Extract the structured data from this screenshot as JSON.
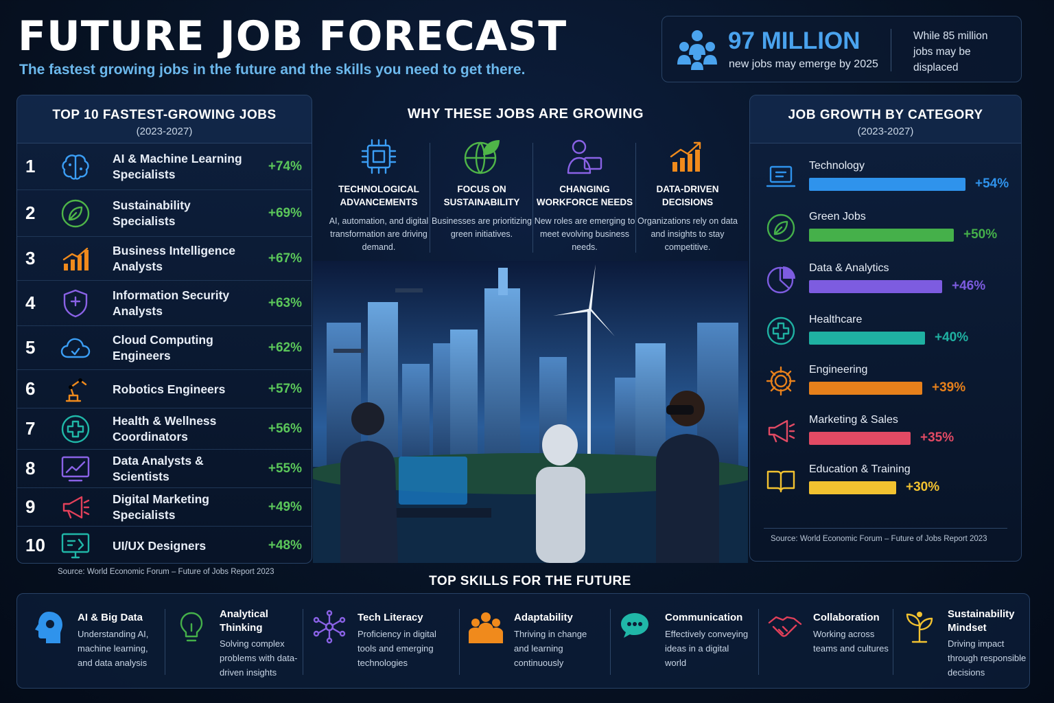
{
  "header": {
    "title": "FUTURE JOB FORECAST",
    "subtitle": "The fastest growing jobs in the future and the skills you need to get there."
  },
  "stat": {
    "icon": "people-icon",
    "big": "97 MILLION",
    "small": "new jobs may emerge by 2025",
    "right": "While 85 million jobs may be displaced"
  },
  "jobs": {
    "title": "TOP 10 FASTEST-GROWING JOBS",
    "years": "(2023-2027)",
    "source": "Source: World Economic Forum – Future of Jobs Report 2023",
    "items": [
      {
        "rank": "1",
        "name": "AI & Machine Learning Specialists",
        "pct": "+74%",
        "icon": "brain-circuit-icon",
        "color": "#3b9ef5"
      },
      {
        "rank": "2",
        "name": "Sustainability Specialists",
        "pct": "+69%",
        "icon": "leaf-icon",
        "color": "#4fb548"
      },
      {
        "rank": "3",
        "name": "Business Intelligence Analysts",
        "pct": "+67%",
        "icon": "bar-chart-icon",
        "color": "#f08a1c"
      },
      {
        "rank": "4",
        "name": "Information Security Analysts",
        "pct": "+63%",
        "icon": "shield-icon",
        "color": "#8a62e6"
      },
      {
        "rank": "5",
        "name": "Cloud Computing Engineers",
        "pct": "+62%",
        "icon": "cloud-icon",
        "color": "#3b9ef5"
      },
      {
        "rank": "6",
        "name": "Robotics Engineers",
        "pct": "+57%",
        "icon": "robot-arm-icon",
        "color": "#f08a1c"
      },
      {
        "rank": "7",
        "name": "Health & Wellness Coordinators",
        "pct": "+56%",
        "icon": "health-cross-icon",
        "color": "#20b7a8"
      },
      {
        "rank": "8",
        "name": "Data Analysts & Scientists",
        "pct": "+55%",
        "icon": "analytics-board-icon",
        "color": "#8a62e6"
      },
      {
        "rank": "9",
        "name": "Digital Marketing Specialists",
        "pct": "+49%",
        "icon": "megaphone-icon",
        "color": "#e2405a"
      },
      {
        "rank": "10",
        "name": "UI/UX Designers",
        "pct": "+48%",
        "icon": "design-monitor-icon",
        "color": "#20b7a8"
      }
    ]
  },
  "reasons": {
    "title": "WHY THESE JOBS ARE GROWING",
    "items": [
      {
        "title": "TECHNOLOGICAL ADVANCEMENTS",
        "desc": "AI, automation, and digital transformation are driving demand.",
        "icon": "chip-icon",
        "color": "#3b9ef5"
      },
      {
        "title": "FOCUS ON SUSTAINABILITY",
        "desc": "Businesses are prioritizing green initiatives.",
        "icon": "globe-leaf-icon",
        "color": "#4fb548"
      },
      {
        "title": "CHANGING WORKFORCE NEEDS",
        "desc": "New roles are emerging to meet evolving business needs.",
        "icon": "person-computer-icon",
        "color": "#8a62e6"
      },
      {
        "title": "DATA-DRIVEN DECISIONS",
        "desc": "Organizations rely on data and insights to stay competitive.",
        "icon": "growth-chart-icon",
        "color": "#f08a1c"
      }
    ]
  },
  "growth": {
    "title": "JOB GROWTH BY CATEGORY",
    "years": "(2023-2027)",
    "source": "Source: World Economic Forum – Future of Jobs Report 2023",
    "items": [
      {
        "name": "Technology",
        "pct": "+54%",
        "value": 54,
        "icon": "laptop-icon",
        "color": "#2f93ec"
      },
      {
        "name": "Green Jobs",
        "pct": "+50%",
        "value": 50,
        "icon": "leaf-icon",
        "color": "#45b04a"
      },
      {
        "name": "Data & Analytics",
        "pct": "+46%",
        "value": 46,
        "icon": "pie-chart-icon",
        "color": "#7d5ce0"
      },
      {
        "name": "Healthcare",
        "pct": "+40%",
        "value": 40,
        "icon": "health-cross-icon",
        "color": "#1fb1a2"
      },
      {
        "name": "Engineering",
        "pct": "+39%",
        "value": 39,
        "icon": "gear-icon",
        "color": "#e7801b"
      },
      {
        "name": "Marketing & Sales",
        "pct": "+35%",
        "value": 35,
        "icon": "megaphone-icon",
        "color": "#e24a64"
      },
      {
        "name": "Education & Training",
        "pct": "+30%",
        "value": 30,
        "icon": "book-icon",
        "color": "#f2c230"
      }
    ]
  },
  "skills": {
    "title": "TOP SKILLS FOR THE FUTURE",
    "items": [
      {
        "name": "AI & Big Data",
        "desc": "Understanding AI, machine learning, and data analysis",
        "icon": "head-gear-icon",
        "color": "#2f93ec"
      },
      {
        "name": "Analytical Thinking",
        "desc": "Solving complex problems with data-driven insights",
        "icon": "lightbulb-icon",
        "color": "#45b04a"
      },
      {
        "name": "Tech Literacy",
        "desc": "Proficiency in digital tools and emerging technologies",
        "icon": "network-icon",
        "color": "#8a62e6"
      },
      {
        "name": "Adaptability",
        "desc": "Thriving in change and learning continuously",
        "icon": "team-icon",
        "color": "#f08a1c"
      },
      {
        "name": "Communication",
        "desc": "Effectively conveying ideas in a digital world",
        "icon": "chat-bubbles-icon",
        "color": "#20b7a8"
      },
      {
        "name": "Collaboration",
        "desc": "Working across teams and cultures",
        "icon": "handshake-icon",
        "color": "#e2405a"
      },
      {
        "name": "Sustainability Mindset",
        "desc": "Driving impact through responsible decisions",
        "icon": "sprout-icon",
        "color": "#f2c230"
      }
    ]
  }
}
